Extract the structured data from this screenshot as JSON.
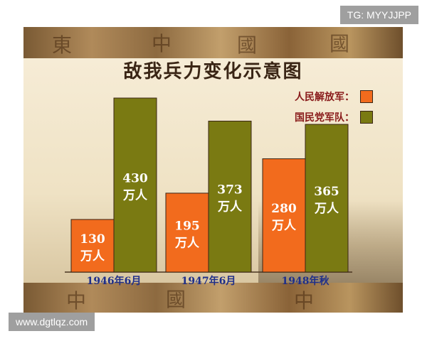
{
  "watermark_tg": "TG: MYYJJPP",
  "watermark_site": "www.dgtlqz.com",
  "colors": {
    "pla": "#f26b1d",
    "kmt": "#7a7a12",
    "title": "#3a2515",
    "category_label": "#1f2f8a",
    "legend_label": "#8a1c1c",
    "bar_label": "#ffffff"
  },
  "chart_data": {
    "type": "bar",
    "title": "敌我兵力变化示意图",
    "unit": "万人",
    "categories": [
      "1946年6月",
      "1947年6月",
      "1948年秋"
    ],
    "series": [
      {
        "name": "人民解放军：",
        "values": [
          130,
          195,
          280
        ]
      },
      {
        "name": "国民党军队：",
        "values": [
          430,
          373,
          365
        ]
      }
    ],
    "ylim": [
      0,
      430
    ],
    "grid": false,
    "legend": "top-right"
  }
}
